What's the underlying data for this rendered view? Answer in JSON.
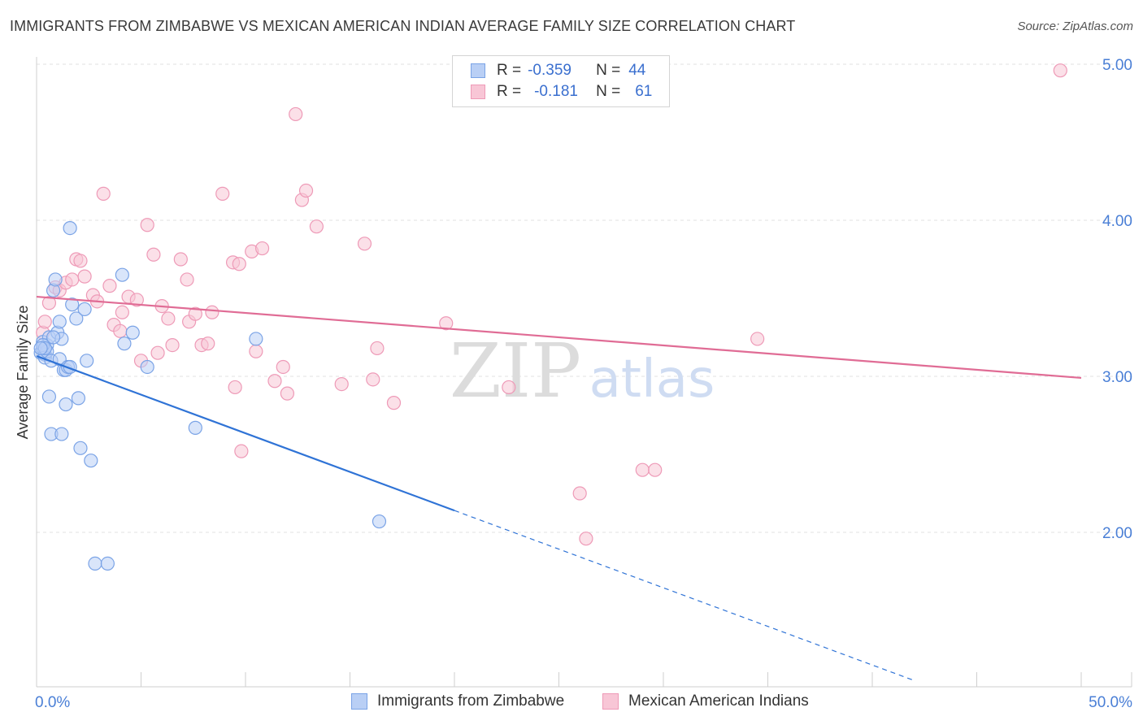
{
  "title": "IMMIGRANTS FROM ZIMBABWE VS MEXICAN AMERICAN INDIAN AVERAGE FAMILY SIZE CORRELATION CHART",
  "source": "Source: ZipAtlas.com",
  "watermark": {
    "zip": "ZIP",
    "atlas": "atlas"
  },
  "legend_top": {
    "rows": [
      {
        "r_label": "R =",
        "r_value": "-0.359",
        "n_label": "N =",
        "n_value": "44"
      },
      {
        "r_label": "R =",
        "r_value": "-0.181",
        "n_label": "N =",
        "n_value": "61"
      }
    ]
  },
  "legend_bottom": {
    "items": [
      "Immigrants from Zimbabwe",
      "Mexican American Indians"
    ]
  },
  "colors": {
    "blue_fill": "#b9cff5",
    "blue_stroke": "#7aa3e6",
    "blue_line": "#2f73d6",
    "pink_fill": "#f8c6d6",
    "pink_stroke": "#ee9ab7",
    "pink_line": "#e06c95",
    "tick_label": "#4a7fd6"
  },
  "chart_data": {
    "type": "scatter",
    "title": "IMMIGRANTS FROM ZIMBABWE VS MEXICAN AMERICAN INDIAN AVERAGE FAMILY SIZE CORRELATION CHART",
    "xlabel": "",
    "ylabel": "Average Family Size",
    "xlim": [
      0,
      50
    ],
    "ylim": [
      1.0,
      5.2
    ],
    "x_tick_labels": [
      "0.0%",
      "50.0%"
    ],
    "y_ticks": [
      2.0,
      3.0,
      4.0,
      5.0
    ],
    "y_tick_labels": [
      "2.00",
      "3.00",
      "4.00",
      "5.00"
    ],
    "grid": true,
    "series": [
      {
        "name": "Immigrants from Zimbabwe",
        "color": "blue",
        "r": -0.359,
        "n": 44,
        "trend": {
          "x0": 0.0,
          "y0": 3.13,
          "x1": 20.0,
          "y1": 2.14,
          "dashed_to_x": 42.0
        },
        "points": [
          [
            0.2,
            3.15
          ],
          [
            0.3,
            3.18
          ],
          [
            0.3,
            3.22
          ],
          [
            0.4,
            3.14
          ],
          [
            0.4,
            3.12
          ],
          [
            0.5,
            3.2
          ],
          [
            0.6,
            3.25
          ],
          [
            0.5,
            3.16
          ],
          [
            0.8,
            3.55
          ],
          [
            0.9,
            3.62
          ],
          [
            0.7,
            3.1
          ],
          [
            1.0,
            3.28
          ],
          [
            1.1,
            3.35
          ],
          [
            1.1,
            3.11
          ],
          [
            1.2,
            3.24
          ],
          [
            1.3,
            3.04
          ],
          [
            1.4,
            3.04
          ],
          [
            1.5,
            3.06
          ],
          [
            0.6,
            2.87
          ],
          [
            0.7,
            2.63
          ],
          [
            1.2,
            2.63
          ],
          [
            1.4,
            2.82
          ],
          [
            1.6,
            3.06
          ],
          [
            1.7,
            3.46
          ],
          [
            1.6,
            3.95
          ],
          [
            1.9,
            3.37
          ],
          [
            2.0,
            2.86
          ],
          [
            2.1,
            2.54
          ],
          [
            2.3,
            3.43
          ],
          [
            2.4,
            3.1
          ],
          [
            2.6,
            2.46
          ],
          [
            2.8,
            1.8
          ],
          [
            3.4,
            1.8
          ],
          [
            4.1,
            3.65
          ],
          [
            4.2,
            3.21
          ],
          [
            4.6,
            3.28
          ],
          [
            5.3,
            3.06
          ],
          [
            0.3,
            3.2
          ],
          [
            0.4,
            3.18
          ],
          [
            0.8,
            3.25
          ],
          [
            7.6,
            2.67
          ],
          [
            10.5,
            3.24
          ],
          [
            16.4,
            2.07
          ],
          [
            0.2,
            3.18
          ]
        ]
      },
      {
        "name": "Mexican American Indians",
        "color": "pink",
        "r": -0.181,
        "n": 61,
        "trend": {
          "x0": 0.0,
          "y0": 3.51,
          "x1": 50.0,
          "y1": 2.99
        },
        "points": [
          [
            0.3,
            3.28
          ],
          [
            0.4,
            3.35
          ],
          [
            0.6,
            3.47
          ],
          [
            0.9,
            3.57
          ],
          [
            1.1,
            3.55
          ],
          [
            1.4,
            3.6
          ],
          [
            1.7,
            3.62
          ],
          [
            1.9,
            3.75
          ],
          [
            2.1,
            3.74
          ],
          [
            2.3,
            3.64
          ],
          [
            2.7,
            3.52
          ],
          [
            2.9,
            3.48
          ],
          [
            3.2,
            4.17
          ],
          [
            3.5,
            3.58
          ],
          [
            3.7,
            3.33
          ],
          [
            4.0,
            3.29
          ],
          [
            4.1,
            3.41
          ],
          [
            4.4,
            3.51
          ],
          [
            4.8,
            3.49
          ],
          [
            5.0,
            3.1
          ],
          [
            5.3,
            3.97
          ],
          [
            5.6,
            3.78
          ],
          [
            5.8,
            3.15
          ],
          [
            6.0,
            3.45
          ],
          [
            6.3,
            3.37
          ],
          [
            6.5,
            3.2
          ],
          [
            6.9,
            3.75
          ],
          [
            7.2,
            3.62
          ],
          [
            7.3,
            3.35
          ],
          [
            7.6,
            3.4
          ],
          [
            7.9,
            3.2
          ],
          [
            8.2,
            3.21
          ],
          [
            8.4,
            3.41
          ],
          [
            8.9,
            4.17
          ],
          [
            9.4,
            3.73
          ],
          [
            9.5,
            2.93
          ],
          [
            9.7,
            3.72
          ],
          [
            9.8,
            2.52
          ],
          [
            10.3,
            3.8
          ],
          [
            10.5,
            3.16
          ],
          [
            10.8,
            3.82
          ],
          [
            11.4,
            2.97
          ],
          [
            11.8,
            3.06
          ],
          [
            12.0,
            2.89
          ],
          [
            12.4,
            4.68
          ],
          [
            12.7,
            4.13
          ],
          [
            12.9,
            4.19
          ],
          [
            13.4,
            3.96
          ],
          [
            14.6,
            2.95
          ],
          [
            15.7,
            3.85
          ],
          [
            16.1,
            2.98
          ],
          [
            16.3,
            3.18
          ],
          [
            17.1,
            2.83
          ],
          [
            19.6,
            3.34
          ],
          [
            22.6,
            2.93
          ],
          [
            26.0,
            2.25
          ],
          [
            26.3,
            1.96
          ],
          [
            29.0,
            2.4
          ],
          [
            29.6,
            2.4
          ],
          [
            34.5,
            3.24
          ],
          [
            49.0,
            4.96
          ]
        ]
      }
    ]
  }
}
